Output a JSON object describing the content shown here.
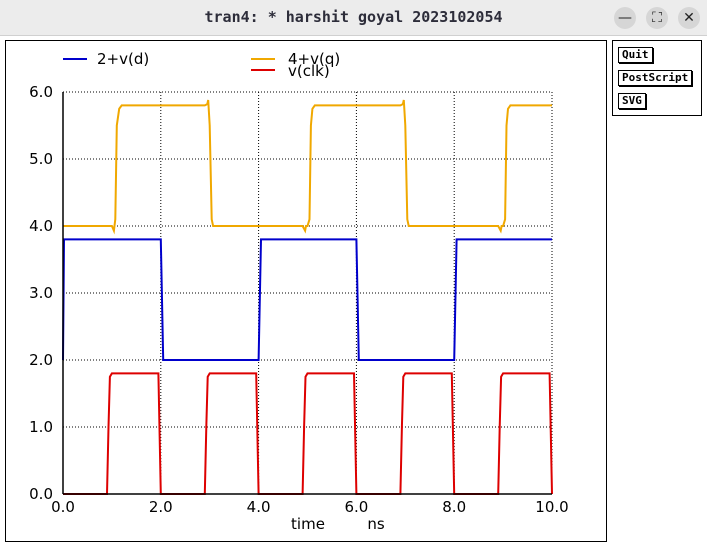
{
  "window": {
    "title": "tran4: * harshit goyal 2023102054",
    "minimize_glyph": "—",
    "maximize_glyph": "⛶",
    "close_glyph": "✕"
  },
  "side_buttons": {
    "quit": "Quit",
    "postscript": "PostScript",
    "svg": "SVG"
  },
  "chart_data": {
    "type": "line",
    "xlabel": "time",
    "xunit": "ns",
    "ylabel": "",
    "xlim": [
      0,
      10
    ],
    "ylim": [
      0,
      6
    ],
    "xticks": [
      "0.0",
      "2.0",
      "4.0",
      "6.0",
      "8.0",
      "10.0"
    ],
    "yticks": [
      "0.0",
      "1.0",
      "2.0",
      "3.0",
      "4.0",
      "5.0",
      "6.0"
    ],
    "grid": true,
    "legend_position": "top",
    "series": [
      {
        "name": "2+v(d)",
        "color": "#0000cc",
        "x": [
          0,
          0.02,
          2.0,
          2.05,
          4.0,
          4.05,
          6.0,
          6.05,
          8.0,
          8.05,
          10.0
        ],
        "y": [
          2.0,
          3.8,
          3.8,
          2.0,
          2.0,
          3.8,
          3.8,
          2.0,
          2.0,
          3.8,
          3.8
        ]
      },
      {
        "name": "4+v(q)",
        "color": "#f0a800",
        "x": [
          0,
          1.0,
          1.04,
          1.07,
          1.1,
          1.15,
          1.2,
          2.9,
          2.95,
          2.97,
          3.0,
          3.04,
          3.07,
          3.1,
          3.15,
          3.2,
          4.9,
          4.95,
          4.97,
          5.0,
          5.04,
          5.07,
          5.1,
          5.15,
          5.2,
          6.9,
          6.95,
          6.97,
          7.0,
          7.04,
          7.07,
          7.1,
          7.15,
          7.2,
          8.9,
          8.95,
          8.97,
          9.0,
          9.04,
          9.07,
          9.1,
          9.15,
          9.2,
          10.0
        ],
        "y": [
          4.0,
          4.0,
          3.93,
          4.1,
          5.5,
          5.75,
          5.8,
          5.8,
          5.82,
          5.88,
          5.5,
          4.1,
          4.0,
          4.0,
          4.0,
          4.0,
          4.0,
          3.93,
          4.0,
          4.0,
          4.1,
          5.5,
          5.75,
          5.8,
          5.8,
          5.8,
          5.82,
          5.88,
          5.5,
          4.1,
          4.0,
          4.0,
          4.0,
          4.0,
          4.0,
          3.93,
          4.0,
          4.0,
          4.1,
          5.5,
          5.75,
          5.8,
          5.8,
          5.8
        ]
      },
      {
        "name": "v(clk)",
        "color": "#dd0000",
        "x": [
          0,
          0.9,
          0.93,
          0.96,
          1.0,
          1.95,
          2.0,
          2.9,
          2.93,
          2.96,
          3.0,
          3.95,
          4.0,
          4.9,
          4.93,
          4.96,
          5.0,
          5.95,
          6.0,
          6.9,
          6.93,
          6.96,
          7.0,
          7.95,
          8.0,
          8.9,
          8.93,
          8.96,
          9.0,
          9.95,
          10.0
        ],
        "y": [
          0,
          0,
          1.0,
          1.75,
          1.8,
          1.8,
          0,
          0,
          1.0,
          1.75,
          1.8,
          1.8,
          0,
          0,
          1.0,
          1.75,
          1.8,
          1.8,
          0,
          0,
          1.0,
          1.75,
          1.8,
          1.8,
          0,
          0,
          1.0,
          1.75,
          1.8,
          1.8,
          0
        ]
      }
    ]
  }
}
